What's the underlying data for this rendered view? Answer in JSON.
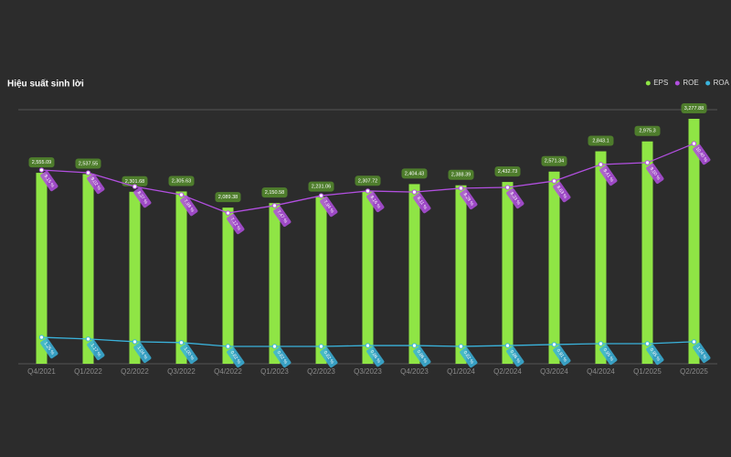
{
  "chart_data": {
    "type": "bar-line",
    "title": "Hiệu suất sinh lời",
    "categories": [
      "Q4/2021",
      "Q1/2022",
      "Q2/2022",
      "Q3/2022",
      "Q4/2022",
      "Q1/2023",
      "Q2/2023",
      "Q3/2023",
      "Q4/2023",
      "Q1/2024",
      "Q2/2024",
      "Q3/2024",
      "Q4/2024",
      "Q1/2025",
      "Q2/2025"
    ],
    "ylim": [
      0,
      3400
    ],
    "y2lim": [
      0,
      12
    ],
    "legend": "top-right",
    "series": [
      {
        "name": "EPS",
        "color": "#8fe545",
        "type": "bar",
        "values": [
          2555.09,
          2537.55,
          2301.68,
          2305.63,
          2089.38,
          2150.58,
          2231.06,
          2307.72,
          2404.43,
          2388.39,
          2432.73,
          2571.34,
          2843.1,
          2975.3,
          3277.88
        ],
        "value_labels": [
          "2,555.09",
          "2,537.55",
          "2,301.68",
          "2,305.63",
          "2,089.38",
          "2,150.58",
          "2,231.06",
          "2,307.72",
          "2,404.43",
          "2,388.39",
          "2,432.73",
          "2,571.34",
          "2,843.1",
          "2,975.3",
          "3,277.88"
        ]
      },
      {
        "name": "ROE",
        "color": "#b24fe0",
        "type": "line",
        "axis": "y2",
        "values": [
          9.15,
          9.02,
          8.37,
          7.98,
          7.12,
          7.47,
          7.94,
          8.16,
          8.11,
          8.29,
          8.33,
          8.63,
          9.41,
          9.5,
          10.4
        ],
        "value_labels": [
          "9.15 %",
          "9.02 %",
          "8.37 %",
          "7.98 %",
          "7.12 %",
          "7.47 %",
          "7.94 %",
          "8.16 %",
          "8.11 %",
          "8.29 %",
          "8.33 %",
          "8.63 %",
          "9.41 %",
          "9.50 %",
          "10.40 %"
        ]
      },
      {
        "name": "ROA",
        "color": "#3ab3dc",
        "type": "line",
        "axis": "y2",
        "values": [
          1.25,
          1.17,
          1.04,
          1.0,
          0.82,
          0.82,
          0.82,
          0.86,
          0.86,
          0.82,
          0.86,
          0.91,
          0.95,
          0.95,
          1.04
        ],
        "value_labels": [
          "1.25 %",
          "1.17 %",
          "1.04 %",
          "1.00 %",
          "0.82 %",
          "0.82 %",
          "0.82 %",
          "0.86 %",
          "0.86 %",
          "0.82 %",
          "0.86 %",
          "0.91 %",
          "0.95 %",
          "0.95 %",
          "1.04 %"
        ]
      }
    ]
  }
}
